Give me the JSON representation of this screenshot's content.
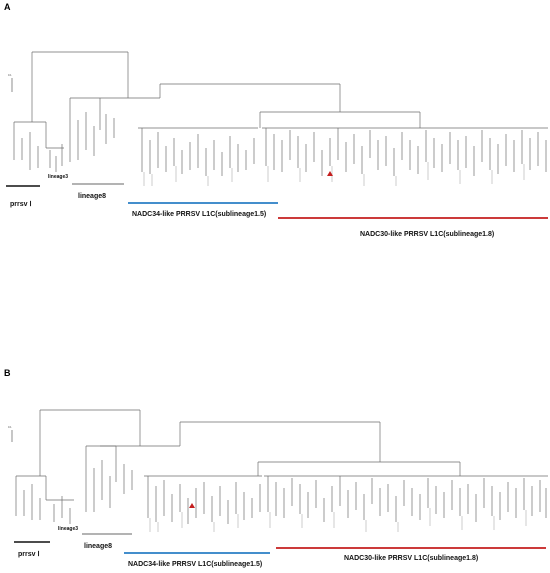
{
  "panels": [
    {
      "letter": "A",
      "scale_label": "0.1",
      "labels": {
        "prrsv": "prrsv Ⅰ",
        "lineage3": "lineage3",
        "lineage8": "lineage8",
        "nadc34": "NADC34-like PRRSV L1C(sublineage1.5)",
        "nadc30": "NADC30-like PRRSV L1C(sublineage1.8)"
      }
    },
    {
      "letter": "B",
      "scale_label": "0.1",
      "labels": {
        "prrsv": "prrsv Ⅰ",
        "lineage3": "lineage3",
        "lineage8": "lineage8",
        "nadc34": "NADC34-like PRRSV L1C(sublineage1.5)",
        "nadc30": "NADC30-like PRRSV L1C(sublineage1.8)"
      }
    }
  ],
  "colors": {
    "nadc34_bar": "#2a7ec4",
    "nadc30_bar": "#c41e1e",
    "lineage8_bar": "#9a9a9a",
    "prrsv_bar": "#111111",
    "marker": "#c41e1e"
  },
  "marker_icon": "triangle-marker-icon"
}
